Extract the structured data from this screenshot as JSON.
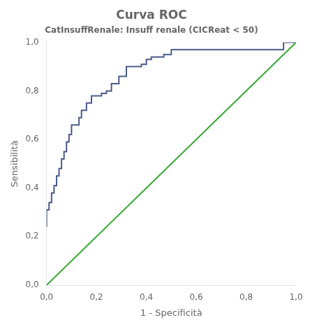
{
  "chart_data": {
    "type": "line",
    "title": "Curva ROC",
    "subtitle": "CatInsuffRenale: Insuff renale (CICReat < 50)",
    "xlabel": "1 - Specificità",
    "ylabel": "Sensibilità",
    "series": [
      {
        "color": "#3aaa35",
        "x": [
          0,
          1
        ],
        "values": [
          0,
          1
        ]
      },
      {
        "color": "#4a5a8a",
        "x": [
          0.0,
          0.0,
          0.0,
          0.01,
          0.01,
          0.02,
          0.02,
          0.03,
          0.03,
          0.04,
          0.04,
          0.05,
          0.05,
          0.06,
          0.06,
          0.07,
          0.07,
          0.08,
          0.08,
          0.09,
          0.09,
          0.1,
          0.1,
          0.11,
          0.11,
          0.13,
          0.13,
          0.14,
          0.14,
          0.16,
          0.16,
          0.18,
          0.18,
          0.2,
          0.2,
          0.22,
          0.22,
          0.24,
          0.24,
          0.26,
          0.26,
          0.29,
          0.29,
          0.32,
          0.32,
          0.35,
          0.35,
          0.38,
          0.38,
          0.4,
          0.4,
          0.42,
          0.42,
          0.44,
          0.44,
          0.47,
          0.47,
          0.5,
          0.5,
          0.53,
          0.53,
          0.56,
          0.56,
          0.59,
          0.59,
          0.63,
          0.63,
          0.7,
          0.7,
          0.8,
          0.8,
          0.88,
          0.88,
          0.95,
          0.95,
          1.0
        ],
        "values": [
          0.24,
          0.28,
          0.31,
          0.31,
          0.34,
          0.34,
          0.38,
          0.38,
          0.41,
          0.41,
          0.45,
          0.45,
          0.48,
          0.48,
          0.52,
          0.52,
          0.55,
          0.55,
          0.59,
          0.59,
          0.62,
          0.62,
          0.66,
          0.66,
          0.66,
          0.66,
          0.69,
          0.69,
          0.72,
          0.72,
          0.75,
          0.75,
          0.78,
          0.78,
          0.78,
          0.78,
          0.79,
          0.79,
          0.8,
          0.8,
          0.83,
          0.83,
          0.86,
          0.86,
          0.9,
          0.9,
          0.9,
          0.9,
          0.91,
          0.91,
          0.93,
          0.93,
          0.94,
          0.94,
          0.94,
          0.94,
          0.95,
          0.95,
          0.97,
          0.97,
          0.97,
          0.97,
          0.97,
          0.97,
          0.97,
          0.97,
          0.97,
          0.97,
          0.97,
          0.97,
          0.97,
          0.97,
          0.97,
          0.97,
          1.0,
          1.0
        ]
      }
    ],
    "xlim": [
      0.0,
      1.0
    ],
    "ylim": [
      0.0,
      1.0
    ],
    "xticks": [
      {
        "value": 0.0,
        "label": "0,0"
      },
      {
        "value": 0.2,
        "label": "0,2"
      },
      {
        "value": 0.4,
        "label": "0,4"
      },
      {
        "value": 0.6,
        "label": "0,6"
      },
      {
        "value": 0.8,
        "label": "0,8"
      },
      {
        "value": 1.0,
        "label": "1,0"
      }
    ],
    "yticks": [
      {
        "value": 0.0,
        "label": "0,0"
      },
      {
        "value": 0.2,
        "label": "0,2"
      },
      {
        "value": 0.4,
        "label": "0,4"
      },
      {
        "value": 0.6,
        "label": "0,6"
      },
      {
        "value": 0.8,
        "label": "0,8"
      },
      {
        "value": 1.0,
        "label": "1,0"
      }
    ],
    "grid": false
  }
}
